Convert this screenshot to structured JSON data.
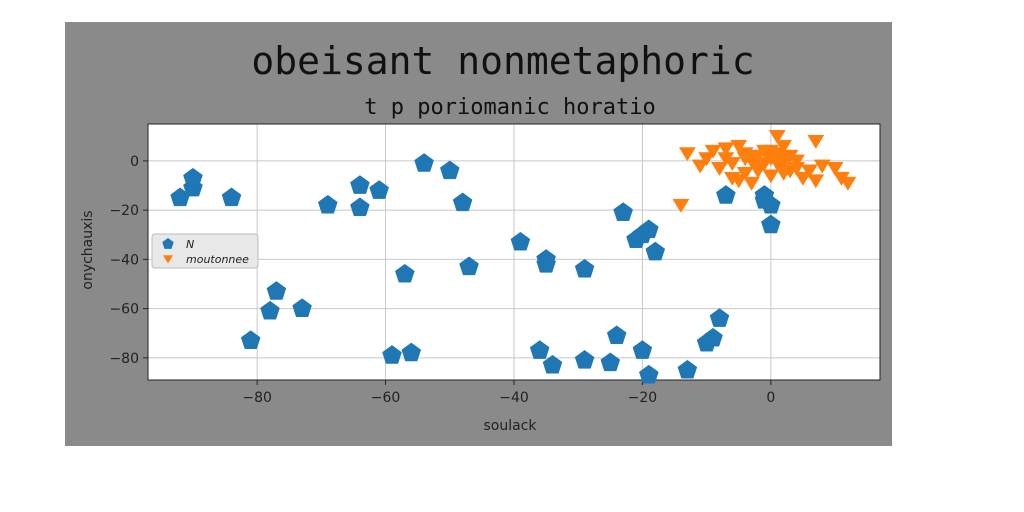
{
  "chart_data": {
    "type": "scatter",
    "title": "obeisant nonmetaphoric",
    "subtitle": "t p poriomanic horatio",
    "xlabel": "soulack",
    "ylabel": "onychauxis",
    "xlim": [
      -97,
      17
    ],
    "ylim": [
      -89,
      15
    ],
    "xticks": [
      -80,
      -60,
      -40,
      -20,
      0
    ],
    "yticks": [
      0,
      -20,
      -40,
      -60,
      -80
    ],
    "xtick_labels": [
      "−80",
      "−60",
      "−40",
      "−20",
      "0"
    ],
    "ytick_labels": [
      "0",
      "−20",
      "−40",
      "−60",
      "−80"
    ],
    "grid": true,
    "legend_position": "center-left",
    "series": [
      {
        "name": "N",
        "color": "#1f77b4",
        "marker": "pentagon",
        "points": [
          [
            -92,
            -15
          ],
          [
            -90,
            -11
          ],
          [
            -90,
            -7
          ],
          [
            -84,
            -15
          ],
          [
            -69,
            -18
          ],
          [
            -64,
            -10
          ],
          [
            -64,
            -19
          ],
          [
            -61,
            -12
          ],
          [
            -54,
            -1
          ],
          [
            -50,
            -4
          ],
          [
            -48,
            -17
          ],
          [
            -47,
            -43
          ],
          [
            -39,
            -33
          ],
          [
            -35,
            -40
          ],
          [
            -35,
            -42
          ],
          [
            -29,
            -44
          ],
          [
            -57,
            -46
          ],
          [
            -81,
            -73
          ],
          [
            -78,
            -61
          ],
          [
            -77,
            -53
          ],
          [
            -73,
            -60
          ],
          [
            -59,
            -79
          ],
          [
            -56,
            -78
          ],
          [
            -36,
            -77
          ],
          [
            -34,
            -83
          ],
          [
            -29,
            -81
          ],
          [
            -25,
            -82
          ],
          [
            -24,
            -71
          ],
          [
            -20,
            -77
          ],
          [
            -19,
            -87
          ],
          [
            -13,
            -85
          ],
          [
            -10,
            -74
          ],
          [
            -8,
            -64
          ],
          [
            -9,
            -72
          ],
          [
            -23,
            -21
          ],
          [
            -21,
            -32
          ],
          [
            -20,
            -30
          ],
          [
            -19,
            -28
          ],
          [
            -18,
            -37
          ],
          [
            -7,
            -14
          ],
          [
            -1,
            -14
          ],
          [
            0,
            -18
          ],
          [
            0,
            -26
          ],
          [
            -1,
            -16
          ]
        ]
      },
      {
        "name": "moutonnee",
        "color": "#ff7f0e",
        "marker": "triangle-down",
        "points": [
          [
            -13,
            3
          ],
          [
            -11,
            -2
          ],
          [
            -9,
            4
          ],
          [
            -7,
            5
          ],
          [
            -6,
            -1
          ],
          [
            -5,
            6
          ],
          [
            -4,
            3
          ],
          [
            -3,
            0
          ],
          [
            -2,
            2
          ],
          [
            -1,
            4
          ],
          [
            0,
            1
          ],
          [
            1,
            3
          ],
          [
            2,
            -2
          ],
          [
            3,
            2
          ],
          [
            -8,
            -3
          ],
          [
            -6,
            -7
          ],
          [
            -4,
            -5
          ],
          [
            -2,
            -4
          ],
          [
            0,
            -6
          ],
          [
            2,
            -5
          ],
          [
            4,
            -3
          ],
          [
            5,
            -7
          ],
          [
            7,
            -8
          ],
          [
            10,
            -3
          ],
          [
            11,
            -7
          ],
          [
            -14,
            -18
          ],
          [
            1,
            10
          ],
          [
            7,
            8
          ],
          [
            -3,
            -9
          ],
          [
            -5,
            -8
          ],
          [
            4,
            0
          ],
          [
            -1,
            -1
          ],
          [
            1,
            -1
          ],
          [
            3,
            -4
          ],
          [
            6,
            -4
          ],
          [
            -7,
            1
          ],
          [
            -2,
            -2
          ],
          [
            0,
            4
          ],
          [
            2,
            6
          ],
          [
            -10,
            1
          ],
          [
            8,
            -2
          ],
          [
            12,
            -9
          ],
          [
            -4,
            1
          ],
          [
            2,
            1
          ]
        ]
      }
    ]
  }
}
